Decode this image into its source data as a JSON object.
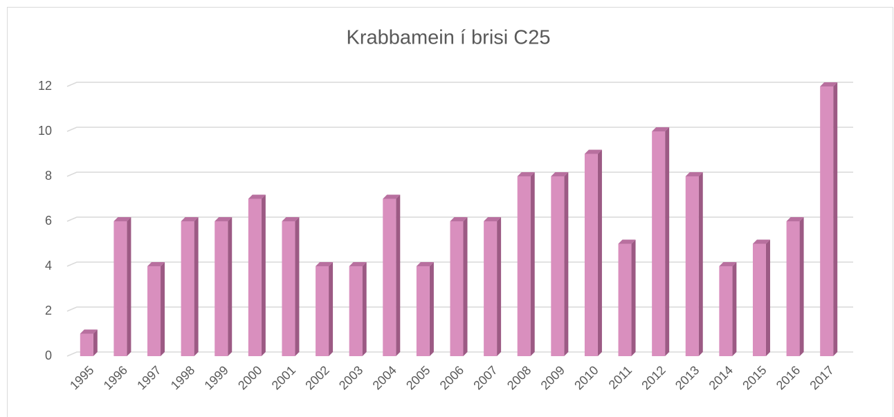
{
  "chart_data": {
    "type": "bar",
    "title": "Krabbamein í brisi C25",
    "categories": [
      "1995",
      "1996",
      "1997",
      "1998",
      "1999",
      "2000",
      "2001",
      "2002",
      "2003",
      "2004",
      "2005",
      "2006",
      "2007",
      "2008",
      "2009",
      "2010",
      "2011",
      "2012",
      "2013",
      "2014",
      "2015",
      "2016",
      "2017"
    ],
    "values": [
      1,
      6,
      4,
      6,
      6,
      7,
      6,
      4,
      4,
      7,
      4,
      6,
      6,
      8,
      8,
      9,
      5,
      10,
      8,
      4,
      5,
      6,
      12
    ],
    "color": "#d98fbe",
    "ylim": [
      0,
      12
    ],
    "yticks": [
      0,
      2,
      4,
      6,
      8,
      10,
      12
    ],
    "grid": true
  }
}
